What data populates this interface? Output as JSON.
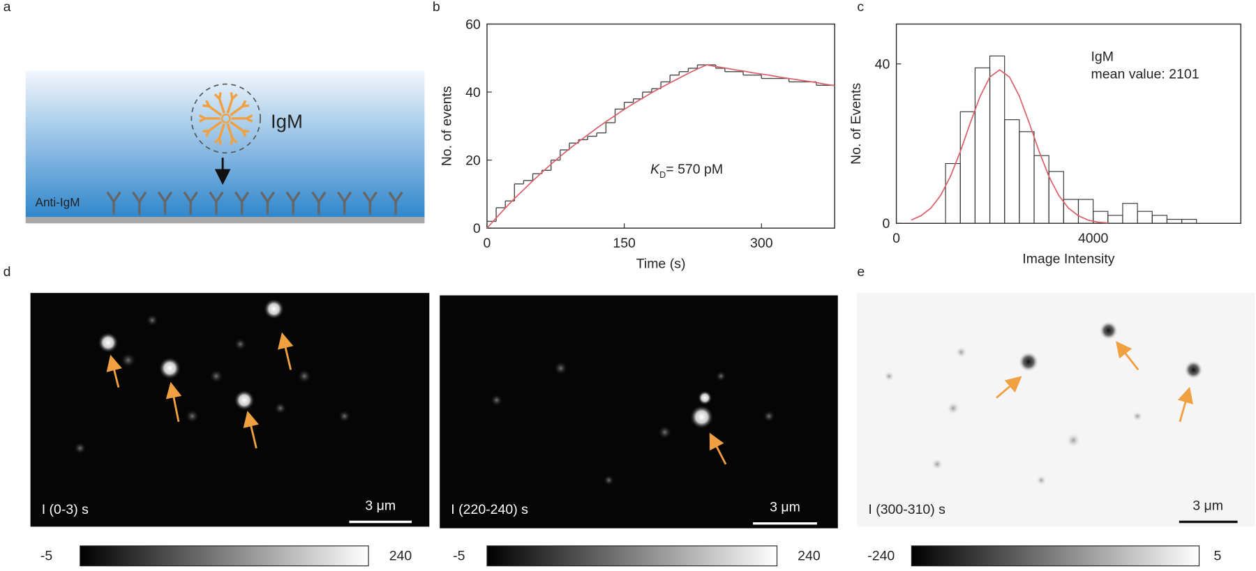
{
  "panel_labels": [
    "a",
    "b",
    "c",
    "d",
    "e"
  ],
  "schematic": {
    "ligand": "IgM",
    "surface": "Anti-IgM"
  },
  "chart_data": [
    {
      "type": "line",
      "x_label": "Time (s)",
      "y_label": "No. of events",
      "annotation": {
        "symbol": "K",
        "subscript": "D",
        "text": "= 570 pM"
      },
      "x": [
        0,
        10,
        20,
        30,
        40,
        50,
        60,
        70,
        80,
        90,
        100,
        110,
        120,
        130,
        140,
        150,
        160,
        170,
        180,
        190,
        200,
        210,
        220,
        230,
        240,
        250,
        260,
        270,
        280,
        290,
        300,
        310,
        320,
        330,
        340,
        350,
        360,
        370,
        380
      ],
      "series": [
        {
          "color": "#444444",
          "step": true,
          "values": [
            2,
            6,
            8,
            13,
            14,
            16,
            17,
            20,
            23,
            25,
            26,
            27,
            28,
            31,
            35,
            37,
            38,
            40,
            41,
            43,
            45,
            46,
            47,
            48,
            48,
            47,
            46,
            46,
            45,
            45,
            44,
            44,
            44,
            43,
            43,
            43,
            42,
            42,
            42
          ]
        },
        {
          "color": "#d9606a",
          "step": false,
          "values": [
            0,
            3.0,
            5.9,
            8.7,
            11.3,
            13.9,
            16.4,
            18.8,
            21.1,
            23.3,
            25.4,
            27.4,
            29.4,
            31.3,
            33.1,
            34.9,
            36.6,
            38.2,
            39.8,
            41.3,
            42.7,
            44.1,
            45.5,
            46.8,
            48.0,
            47.5,
            47.1,
            46.6,
            46.2,
            45.7,
            45.3,
            44.9,
            44.4,
            44.0,
            43.6,
            43.2,
            42.8,
            42.3,
            41.9
          ]
        }
      ],
      "xlim": [
        0,
        380
      ],
      "xticks": [
        0,
        150,
        300
      ],
      "ylim": [
        0,
        60
      ],
      "yticks": [
        0,
        20,
        40,
        60
      ]
    },
    {
      "type": "histogram",
      "x_label": "Image Intensity",
      "y_label": "No. of Events",
      "annotation": {
        "name": "IgM",
        "text": "mean value: 2101",
        "color": "#f0a040"
      },
      "bins": [
        1000,
        1300,
        1600,
        1900,
        2200,
        2500,
        2800,
        3100,
        3400,
        3700,
        4000,
        4300,
        4600,
        4900,
        5200,
        5500,
        5800,
        6100
      ],
      "values": [
        15,
        28,
        39,
        42,
        26,
        23,
        17,
        13,
        6,
        6,
        3,
        2,
        5,
        3,
        2,
        1,
        1
      ],
      "color": "#333333",
      "fit": {
        "color": "#d9606a",
        "x": [
          300,
          500,
          700,
          900,
          1100,
          1300,
          1500,
          1700,
          1900,
          2100,
          2300,
          2500,
          2700,
          2900,
          3100,
          3300,
          3500,
          3700,
          3900,
          4100,
          4300
        ],
        "values": [
          0.8,
          1.9,
          3.8,
          7.0,
          11.8,
          18.0,
          25.1,
          31.8,
          36.7,
          38.5,
          36.7,
          31.9,
          25.2,
          18.1,
          11.8,
          7.0,
          3.8,
          1.9,
          0.8,
          0.3,
          0.1
        ]
      },
      "xlim": [
        0,
        7000
      ],
      "xticks": [
        0,
        4000
      ],
      "ylim": [
        0,
        50
      ],
      "yticks": [
        0,
        40
      ]
    }
  ],
  "images": [
    {
      "label": "I (0-3) s",
      "scale_bar": "3 μm",
      "colorbar": {
        "min": -5,
        "max": 240
      }
    },
    {
      "label": "I (220-240) s",
      "scale_bar": "3 μm",
      "colorbar": {
        "min": -5,
        "max": 240
      }
    },
    {
      "label": "I (300-310) s",
      "scale_bar": "3 μm",
      "colorbar": {
        "min": -240,
        "max": 5
      }
    }
  ]
}
